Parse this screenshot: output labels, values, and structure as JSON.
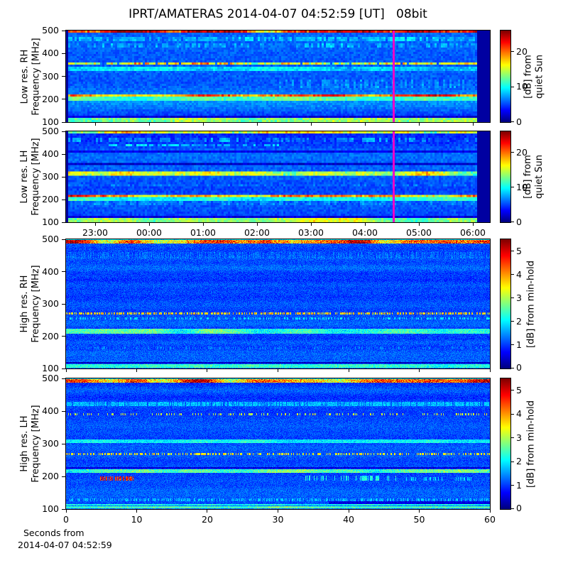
{
  "title": "IPRT/AMATERAS 2014-04-07 04:52:59 [UT]   08bit",
  "footer": {
    "line1": "Seconds from",
    "line2": "2014-04-07 04:52:59"
  },
  "x_axes": {
    "time": {
      "labels": [
        "23:00",
        "00:00",
        "01:00",
        "02:00",
        "03:00",
        "04:00",
        "05:00",
        "06:00"
      ],
      "fracs": [
        0.0687,
        0.196,
        0.3233,
        0.4506,
        0.5779,
        0.7052,
        0.8325,
        0.9598
      ]
    },
    "seconds": {
      "labels": [
        "0",
        "10",
        "20",
        "30",
        "40",
        "50",
        "60"
      ],
      "fracs": [
        0,
        0.1667,
        0.3333,
        0.5,
        0.6667,
        0.8333,
        1
      ]
    }
  },
  "chart_data": [
    {
      "id": "low_res_rh",
      "type": "heatmap",
      "ylabel": "Low res. RH\nFrequency [MHz]",
      "ylim": [
        100,
        500
      ],
      "yticks": [
        500,
        400,
        300,
        200,
        100
      ],
      "xaxis": "time",
      "colorbar": {
        "label": "[dB] from\nquiet Sun",
        "ticks": [
          20,
          10,
          0
        ],
        "range": [
          0,
          26
        ]
      },
      "marker": {
        "frac": 0.7714,
        "color": "#ee00c8"
      },
      "render": {
        "seed": 7,
        "cols": 199,
        "rows": 43,
        "bg": 6,
        "row_vary": 1.7,
        "bg_speckle": 1.8,
        "dark_edges": [
          [
            0,
            0.007
          ],
          [
            0.972,
            1
          ]
        ],
        "bands": [
          {
            "f": [
              487,
              500
            ],
            "db": 15,
            "vary": 6,
            "speckle": 5
          },
          {
            "f": [
              452,
              468
            ],
            "db": 2.2,
            "vary": 1.5,
            "speckle": 1,
            "prob": 0.7
          },
          {
            "f": [
              428,
              442
            ],
            "db": 1.8,
            "vary": 1.5,
            "speckle": 1,
            "prob": 0.5
          },
          {
            "f": [
              348,
              357
            ],
            "db": 11,
            "vary": 3,
            "speckle": 7,
            "prob": 0.9
          },
          {
            "f": [
              324,
              346
            ],
            "db": 3.2,
            "vary": 1.5,
            "speckle": 1.5
          },
          {
            "f": [
              294,
              300
            ],
            "db": -3.5
          },
          {
            "f": [
              246,
              290
            ],
            "db": 1.5,
            "speckle": 1.5,
            "prob": 0.35,
            "x": [
              0.5,
              1
            ]
          },
          {
            "f": [
              212,
              225
            ],
            "db": 13,
            "vary": 4,
            "speckle": 4
          },
          {
            "f": [
              195,
              211
            ],
            "db": 4.5,
            "vary": 1.5,
            "speckle": 1.5
          },
          {
            "f": [
              118,
              124
            ],
            "db": -2.5
          },
          {
            "f": [
              102,
              114
            ],
            "db": 9.5,
            "vary": 2.5,
            "speckle": 3
          }
        ]
      }
    },
    {
      "id": "low_res_lh",
      "type": "heatmap",
      "ylabel": "Low res. LH\nFrequency [MHz]",
      "ylim": [
        100,
        500
      ],
      "yticks": [
        500,
        400,
        300,
        200,
        100
      ],
      "xaxis": "time",
      "colorbar": {
        "label": "[dB] from\nquiet Sun",
        "ticks": [
          20,
          10,
          0
        ],
        "range": [
          0,
          26
        ]
      },
      "marker": {
        "frac": 0.7714,
        "color": "#ee00c8"
      },
      "render": {
        "seed": 13,
        "cols": 199,
        "rows": 43,
        "bg": 6,
        "row_vary": 1.7,
        "bg_speckle": 1.8,
        "dark_edges": [
          [
            0,
            0.007
          ],
          [
            0.972,
            1
          ]
        ],
        "bands": [
          {
            "f": [
              487,
              500
            ],
            "db": 11,
            "vary": 4.5,
            "speckle": 4
          },
          {
            "f": [
              452,
              468
            ],
            "db": 2.2,
            "vary": 1.5,
            "speckle": 1,
            "prob": 0.5
          },
          {
            "f": [
              432,
              448
            ],
            "db": 3.2,
            "vary": 2,
            "speckle": 1.5,
            "prob": 0.6,
            "x": [
              0.1,
              0.5
            ]
          },
          {
            "f": [
              408,
              416
            ],
            "db": -3
          },
          {
            "f": [
              350,
              362
            ],
            "db": -4
          },
          {
            "f": [
              305,
              320
            ],
            "db": 9.5,
            "vary": 3.5,
            "speckle": 3.5
          },
          {
            "f": [
              260,
              268
            ],
            "db": 1.2,
            "speckle": 1,
            "prob": 0.4
          },
          {
            "f": [
              212,
              225
            ],
            "db": 14,
            "vary": 4,
            "speckle": 4.5
          },
          {
            "f": [
              195,
              211
            ],
            "db": 4.5,
            "vary": 1.5,
            "speckle": 1.5
          },
          {
            "f": [
              170,
              193
            ],
            "db": 1.2,
            "speckle": 1.2,
            "prob": 0.5
          },
          {
            "f": [
              118,
              124
            ],
            "db": -2.5
          },
          {
            "f": [
              102,
              114
            ],
            "db": 9,
            "vary": 2.5,
            "speckle": 2.5
          }
        ]
      }
    },
    {
      "id": "high_res_rh",
      "type": "heatmap",
      "ylabel": "High res. RH\nFrequency [MHz]",
      "ylim": [
        100,
        500
      ],
      "yticks": [
        500,
        400,
        300,
        200,
        100
      ],
      "xaxis": "seconds",
      "colorbar": {
        "label": "[dB] from min-hold",
        "ticks": [
          5,
          4,
          3,
          2,
          1,
          0
        ],
        "range": [
          0,
          5.5
        ]
      },
      "marker": null,
      "render": {
        "seed": 21,
        "cols": 597,
        "rows": 182,
        "bg": 1.1,
        "row_vary": 0.18,
        "bg_speckle": 0.55,
        "dark_edges": [],
        "bands": [
          {
            "f": [
              498,
              500
            ],
            "db": 0.9,
            "speckle": 0.4
          },
          {
            "f": [
              486,
              498
            ],
            "db": 3.2,
            "vary": 1.2,
            "speckle": 1.6
          },
          {
            "f": [
              440,
              460
            ],
            "db": 0.25,
            "speckle": 0.25,
            "prob": 0.5
          },
          {
            "f": [
              268,
              273
            ],
            "db": 2.6,
            "speckle": 1.2,
            "prob": 0.55
          },
          {
            "f": [
              252,
              258
            ],
            "db": 0.8,
            "speckle": 0.4,
            "prob": 0.3
          },
          {
            "f": [
              208,
              222
            ],
            "db": 1.25,
            "vary": 0.4,
            "speckle": 0.8
          },
          {
            "f": [
              160,
              168
            ],
            "db": 0.3,
            "speckle": 0.3,
            "prob": 0.3
          },
          {
            "f": [
              115,
              119
            ],
            "db": -0.85
          },
          {
            "f": [
              102,
              114
            ],
            "db": 1.15,
            "vary": 0.3,
            "speckle": 0.6
          }
        ]
      }
    },
    {
      "id": "high_res_lh",
      "type": "heatmap",
      "ylabel": "High res. LH\nFrequency [MHz]",
      "ylim": [
        100,
        500
      ],
      "yticks": [
        500,
        400,
        300,
        200,
        100
      ],
      "xaxis": "seconds",
      "colorbar": {
        "label": "[dB] from min-hold",
        "ticks": [
          5,
          4,
          3,
          2,
          1,
          0
        ],
        "range": [
          0,
          5.5
        ]
      },
      "marker": null,
      "render": {
        "seed": 29,
        "cols": 597,
        "rows": 184,
        "bg": 1.1,
        "row_vary": 0.18,
        "bg_speckle": 0.55,
        "dark_edges": [],
        "bands": [
          {
            "f": [
              498,
              500
            ],
            "db": 0.9,
            "speckle": 0.4
          },
          {
            "f": [
              486,
              498
            ],
            "db": 3.2,
            "vary": 1.2,
            "speckle": 1.7
          },
          {
            "f": [
              415,
              428
            ],
            "db": 0.55,
            "speckle": 0.35,
            "prob": 0.8
          },
          {
            "f": [
              388,
              393
            ],
            "db": 2.2,
            "speckle": 0.8,
            "prob": 0.22
          },
          {
            "f": [
              303,
              313
            ],
            "db": 0.9,
            "vary": 0.3,
            "speckle": 0.5
          },
          {
            "f": [
              266,
              271
            ],
            "db": 2.3,
            "speckle": 0.9,
            "prob": 0.4
          },
          {
            "f": [
              210,
              222
            ],
            "db": 1.45,
            "vary": 0.5,
            "speckle": 0.9
          },
          {
            "f": [
              223,
              228
            ],
            "db": -0.6
          },
          {
            "f": [
              188,
              200
            ],
            "db": 3.6,
            "speckle": 1.2,
            "prob": 0.55,
            "x": [
              0.08,
              0.16
            ]
          },
          {
            "f": [
              186,
              202
            ],
            "db": 1.1,
            "speckle": 0.6,
            "prob": 0.3,
            "x": [
              0.55,
              0.78
            ]
          },
          {
            "f": [
              186,
              198
            ],
            "db": 0.8,
            "speckle": 0.5,
            "prob": 0.25,
            "x": [
              0.8,
              0.97
            ]
          },
          {
            "f": [
              125,
              132
            ],
            "db": 0.6,
            "speckle": 0.4,
            "prob": 0.45
          },
          {
            "f": [
              116,
              124
            ],
            "db": -0.55,
            "x": [
              0.62,
              1
            ]
          },
          {
            "f": [
              110,
              116
            ],
            "db": 1.0,
            "vary": 0.3,
            "speckle": 0.5
          },
          {
            "f": [
              103,
              108
            ],
            "db": 1.2,
            "vary": 0.3,
            "speckle": 0.6
          }
        ]
      }
    }
  ]
}
